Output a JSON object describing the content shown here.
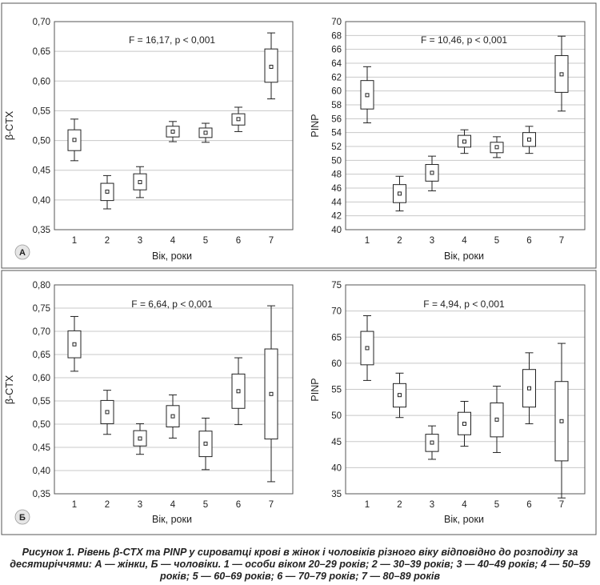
{
  "caption": "Рисунок 1. Рівень β-CTX та PINP у сироватці крові в жінок і чоловіків різного віку відповідно до розподілу за десятиріччями: А — жінки, Б — чоловіки. 1 — особи віком 20–29 років; 2 — 30–39 років; 3 — 40–49 років; 4 — 50–59 років; 5 — 60–69 років; 6 — 70–79 років; 7 — 80–89 років",
  "panel_labels": [
    "A",
    "Б"
  ],
  "chart_data": [
    {
      "type": "box",
      "panel": "A",
      "annotation": "F = 16,17, p < 0,001",
      "xlabel": "Вік, роки",
      "ylabel": "β-CTX",
      "categories": [
        "1",
        "2",
        "3",
        "4",
        "5",
        "6",
        "7"
      ],
      "ylim": [
        0.35,
        0.7
      ],
      "yticks": [
        "0,35",
        "0,40",
        "0,45",
        "0,50",
        "0,55",
        "0,60",
        "0,65",
        "0,70"
      ],
      "yticks_values": [
        0.35,
        0.4,
        0.45,
        0.5,
        0.55,
        0.6,
        0.65,
        0.7
      ],
      "series": [
        {
          "mean": 0.501,
          "q1": 0.483,
          "q3": 0.518,
          "min": 0.466,
          "max": 0.536
        },
        {
          "mean": 0.414,
          "q1": 0.399,
          "q3": 0.428,
          "min": 0.385,
          "max": 0.441
        },
        {
          "mean": 0.43,
          "q1": 0.417,
          "q3": 0.444,
          "min": 0.404,
          "max": 0.456
        },
        {
          "mean": 0.515,
          "q1": 0.506,
          "q3": 0.524,
          "min": 0.498,
          "max": 0.532
        },
        {
          "mean": 0.513,
          "q1": 0.505,
          "q3": 0.521,
          "min": 0.497,
          "max": 0.529
        },
        {
          "mean": 0.536,
          "q1": 0.526,
          "q3": 0.545,
          "min": 0.515,
          "max": 0.556
        },
        {
          "mean": 0.624,
          "q1": 0.598,
          "q3": 0.654,
          "min": 0.57,
          "max": 0.681
        }
      ]
    },
    {
      "type": "box",
      "panel": "",
      "annotation": "F = 10,46, p < 0,001",
      "xlabel": "Вік, роки",
      "ylabel": "PINP",
      "categories": [
        "1",
        "2",
        "3",
        "4",
        "5",
        "6",
        "7"
      ],
      "ylim": [
        40,
        70
      ],
      "yticks": [
        "40",
        "42",
        "44",
        "46",
        "48",
        "50",
        "52",
        "54",
        "56",
        "58",
        "60",
        "62",
        "64",
        "66",
        "68",
        "70"
      ],
      "yticks_values": [
        40,
        42,
        44,
        46,
        48,
        50,
        52,
        54,
        56,
        58,
        60,
        62,
        64,
        66,
        68,
        70
      ],
      "series": [
        {
          "mean": 59.4,
          "q1": 57.4,
          "q3": 61.5,
          "min": 55.4,
          "max": 63.5
        },
        {
          "mean": 45.2,
          "q1": 43.9,
          "q3": 46.5,
          "min": 42.7,
          "max": 47.7
        },
        {
          "mean": 48.2,
          "q1": 47.0,
          "q3": 49.4,
          "min": 45.6,
          "max": 50.6
        },
        {
          "mean": 52.7,
          "q1": 51.9,
          "q3": 53.6,
          "min": 51.0,
          "max": 54.4
        },
        {
          "mean": 51.9,
          "q1": 51.1,
          "q3": 52.6,
          "min": 50.4,
          "max": 53.4
        },
        {
          "mean": 53.0,
          "q1": 52.0,
          "q3": 54.0,
          "min": 51.0,
          "max": 54.9
        },
        {
          "mean": 62.4,
          "q1": 59.8,
          "q3": 65.1,
          "min": 57.1,
          "max": 67.9
        }
      ]
    },
    {
      "type": "box",
      "panel": "Б",
      "annotation": "F = 6,64, p < 0,001",
      "xlabel": "Вік, роки",
      "ylabel": "β-CTX",
      "categories": [
        "1",
        "2",
        "3",
        "4",
        "5",
        "6",
        "7"
      ],
      "ylim": [
        0.35,
        0.8
      ],
      "yticks": [
        "0,35",
        "0,40",
        "0,45",
        "0,50",
        "0,55",
        "0,60",
        "0,65",
        "0,70",
        "0,75",
        "0,80"
      ],
      "yticks_values": [
        0.35,
        0.4,
        0.45,
        0.5,
        0.55,
        0.6,
        0.65,
        0.7,
        0.75,
        0.8
      ],
      "series": [
        {
          "mean": 0.672,
          "q1": 0.643,
          "q3": 0.701,
          "min": 0.614,
          "max": 0.732
        },
        {
          "mean": 0.526,
          "q1": 0.501,
          "q3": 0.551,
          "min": 0.478,
          "max": 0.573
        },
        {
          "mean": 0.469,
          "q1": 0.453,
          "q3": 0.486,
          "min": 0.435,
          "max": 0.501
        },
        {
          "mean": 0.517,
          "q1": 0.494,
          "q3": 0.54,
          "min": 0.47,
          "max": 0.563
        },
        {
          "mean": 0.458,
          "q1": 0.43,
          "q3": 0.485,
          "min": 0.402,
          "max": 0.513
        },
        {
          "mean": 0.571,
          "q1": 0.534,
          "q3": 0.608,
          "min": 0.499,
          "max": 0.643
        },
        {
          "mean": 0.565,
          "q1": 0.468,
          "q3": 0.662,
          "min": 0.376,
          "max": 0.755
        }
      ]
    },
    {
      "type": "box",
      "panel": "",
      "annotation": "F = 4,94, p < 0,001",
      "xlabel": "Вік, роки",
      "ylabel": "PINP",
      "categories": [
        "1",
        "2",
        "3",
        "4",
        "5",
        "6",
        "7"
      ],
      "ylim": [
        35,
        75
      ],
      "yticks": [
        "35",
        "40",
        "45",
        "50",
        "55",
        "60",
        "65",
        "70",
        "75"
      ],
      "yticks_values": [
        35,
        40,
        45,
        50,
        55,
        60,
        65,
        70,
        75
      ],
      "series": [
        {
          "mean": 62.9,
          "q1": 59.7,
          "q3": 66.1,
          "min": 56.7,
          "max": 69.1
        },
        {
          "mean": 53.9,
          "q1": 51.6,
          "q3": 56.1,
          "min": 49.6,
          "max": 58.1
        },
        {
          "mean": 44.8,
          "q1": 43.1,
          "q3": 46.4,
          "min": 41.6,
          "max": 48.0
        },
        {
          "mean": 48.4,
          "q1": 46.3,
          "q3": 50.6,
          "min": 44.1,
          "max": 52.7
        },
        {
          "mean": 49.2,
          "q1": 45.9,
          "q3": 52.4,
          "min": 42.9,
          "max": 55.6
        },
        {
          "mean": 55.2,
          "q1": 51.6,
          "q3": 58.8,
          "min": 48.4,
          "max": 62.0
        },
        {
          "mean": 48.9,
          "q1": 41.3,
          "q3": 56.5,
          "min": 34.2,
          "max": 63.8
        }
      ]
    }
  ]
}
